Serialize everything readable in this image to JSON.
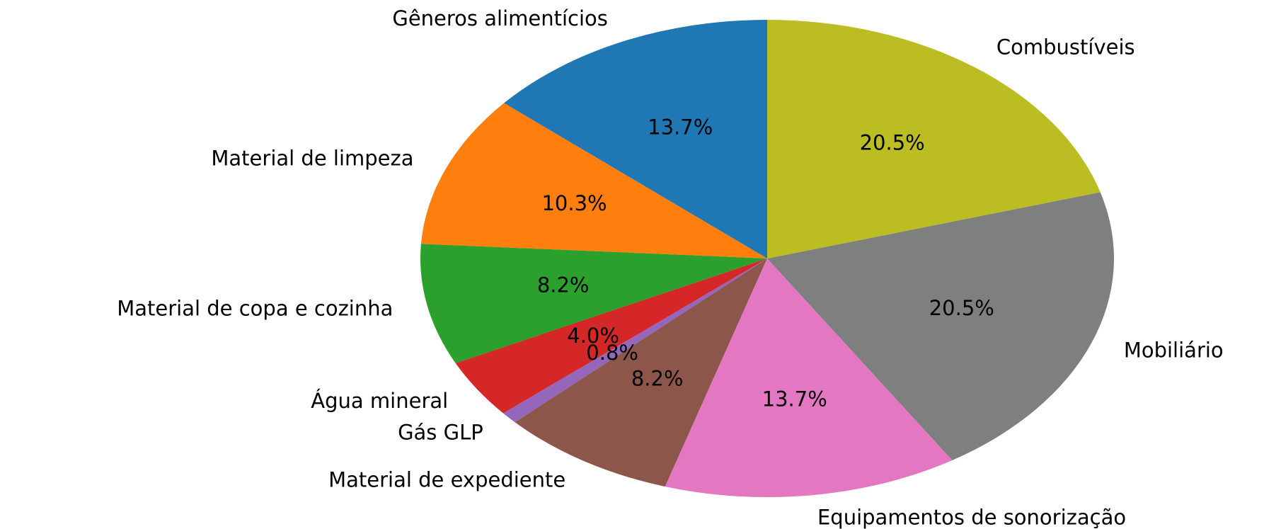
{
  "chart_data": {
    "type": "pie",
    "categories": [
      "Gêneros alimentícios",
      "Material de limpeza",
      "Material de copa e cozinha",
      "Água mineral",
      "Gás GLP",
      "Material de expediente",
      "Equipamentos de sonorização",
      "Mobiliário",
      "Combustíveis"
    ],
    "values": [
      13.7,
      10.3,
      8.2,
      4.0,
      0.8,
      8.2,
      13.7,
      20.5,
      20.5
    ],
    "value_labels": [
      "13.7%",
      "10.3%",
      "8.2%",
      "4.0%",
      "0.8%",
      "8.2%",
      "13.7%",
      "20.5%",
      "20.5%"
    ],
    "colors": [
      "#1f77b4",
      "#ff7f0e",
      "#2ca02c",
      "#d62728",
      "#9467bd",
      "#8c564b",
      "#e377c2",
      "#7f7f7f",
      "#bcbd22"
    ]
  }
}
